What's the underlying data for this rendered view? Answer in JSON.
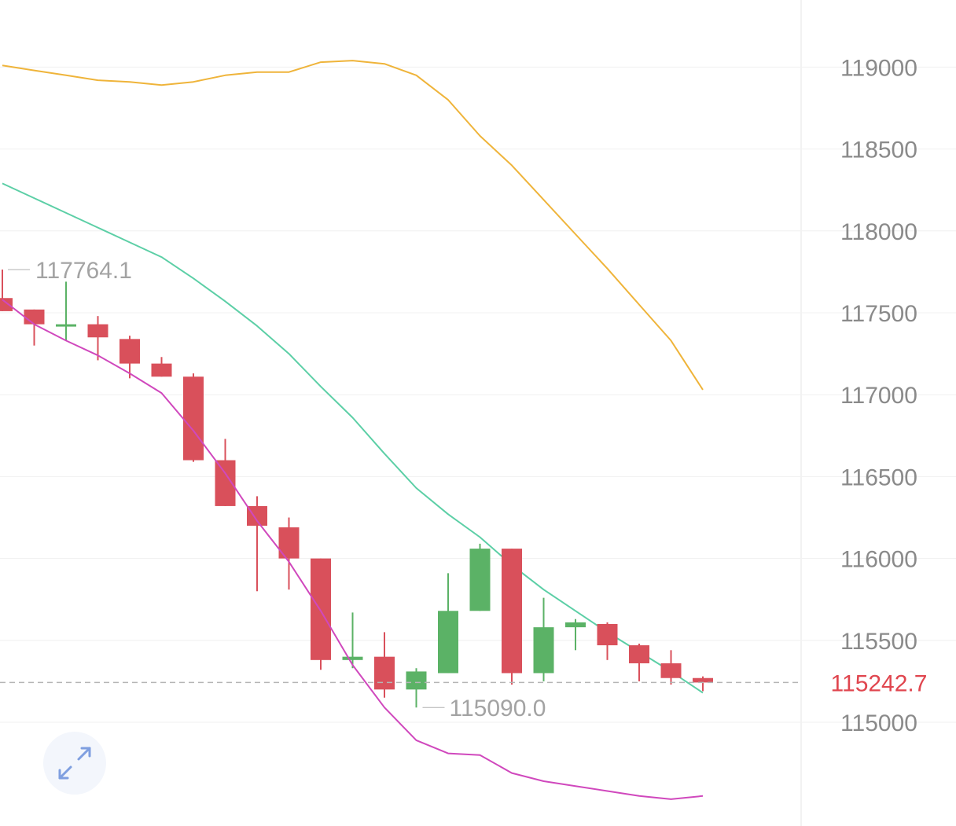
{
  "chart_data": {
    "type": "candlestick",
    "ylim": [
      114400,
      119400
    ],
    "y_ticks": [
      "115000",
      "115500",
      "116000",
      "116500",
      "117000",
      "117500",
      "118000",
      "118500",
      "119000"
    ],
    "y_tick_values": [
      115000,
      115500,
      116000,
      116500,
      117000,
      117500,
      118000,
      118500,
      119000
    ],
    "grid": true,
    "colors": {
      "up": "#5bb266",
      "down": "#d9505b",
      "upper_band": "#efb43a",
      "middle_band": "#5ccfa6",
      "lower_line": "#d048bd",
      "last_price": "#e0464f",
      "grid": "#f0f0f0",
      "axis_text": "#8a8a8a"
    },
    "candles": [
      {
        "o": 117590,
        "h": 117764.1,
        "l": 117510,
        "c": 117510
      },
      {
        "o": 117520,
        "h": 117520,
        "l": 117300,
        "c": 117430
      },
      {
        "o": 117430,
        "h": 117690,
        "l": 117330,
        "c": 117430
      },
      {
        "o": 117430,
        "h": 117480,
        "l": 117210,
        "c": 117350
      },
      {
        "o": 117340,
        "h": 117360,
        "l": 117100,
        "c": 117190
      },
      {
        "o": 117190,
        "h": 117230,
        "l": 117110,
        "c": 117110
      },
      {
        "o": 117110,
        "h": 117130,
        "l": 116590,
        "c": 116600
      },
      {
        "o": 116600,
        "h": 116730,
        "l": 116320,
        "c": 116320
      },
      {
        "o": 116320,
        "h": 116380,
        "l": 115800,
        "c": 116200
      },
      {
        "o": 116190,
        "h": 116250,
        "l": 115810,
        "c": 116000
      },
      {
        "o": 116000,
        "h": 116000,
        "l": 115320,
        "c": 115380
      },
      {
        "o": 115380,
        "h": 115670,
        "l": 115330,
        "c": 115400
      },
      {
        "o": 115400,
        "h": 115550,
        "l": 115150,
        "c": 115200
      },
      {
        "o": 115200,
        "h": 115330,
        "l": 115090.0,
        "c": 115310
      },
      {
        "o": 115300,
        "h": 115910,
        "l": 115300,
        "c": 115680
      },
      {
        "o": 115680,
        "h": 116090,
        "l": 115680,
        "c": 116060
      },
      {
        "o": 116060,
        "h": 116060,
        "l": 115230,
        "c": 115300
      },
      {
        "o": 115300,
        "h": 115760,
        "l": 115250,
        "c": 115580
      },
      {
        "o": 115580,
        "h": 115630,
        "l": 115440,
        "c": 115610
      },
      {
        "o": 115600,
        "h": 115610,
        "l": 115380,
        "c": 115470
      },
      {
        "o": 115470,
        "h": 115480,
        "l": 115250,
        "c": 115360
      },
      {
        "o": 115360,
        "h": 115440,
        "l": 115230,
        "c": 115270
      },
      {
        "o": 115270,
        "h": 115280,
        "l": 115190,
        "c": 115242.7
      }
    ],
    "upper_band": [
      119010,
      118980,
      118950,
      118920,
      118910,
      118890,
      118910,
      118950,
      118970,
      118970,
      119030,
      119040,
      119020,
      118950,
      118800,
      118580,
      118400,
      118190,
      117980,
      117770,
      117550,
      117330,
      117030
    ],
    "middle_band": [
      118290,
      118200,
      118110,
      118020,
      117930,
      117840,
      117710,
      117570,
      117420,
      117250,
      117050,
      116860,
      116640,
      116430,
      116270,
      116130,
      115960,
      115810,
      115680,
      115550,
      115430,
      115310,
      115180
    ],
    "lower_line": [
      117580,
      117430,
      117330,
      117240,
      117130,
      117010,
      116780,
      116520,
      116230,
      115980,
      115680,
      115350,
      115090,
      114890,
      114810,
      114800,
      114690,
      114640,
      114610,
      114580,
      114550,
      114530,
      114550
    ],
    "annotations": {
      "high_label": "117764.1",
      "high_value": 117764.1,
      "low_label": "115090.0",
      "low_value": 115090.0
    },
    "last_price": {
      "label": "115242.7",
      "value": 115242.7
    }
  },
  "ui": {
    "expand_icon": "expand-arrows-icon"
  }
}
